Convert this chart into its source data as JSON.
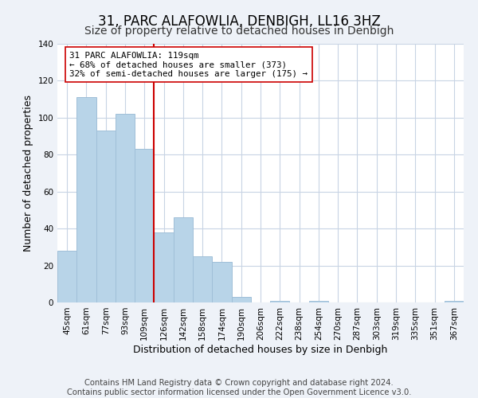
{
  "title": "31, PARC ALAFOWLIA, DENBIGH, LL16 3HZ",
  "subtitle": "Size of property relative to detached houses in Denbigh",
  "xlabel": "Distribution of detached houses by size in Denbigh",
  "ylabel": "Number of detached properties",
  "bar_color": "#b8d4e8",
  "bar_edge_color": "#a0bfd8",
  "vline_color": "#cc0000",
  "annotation_text": "31 PARC ALAFOWLIA: 119sqm\n← 68% of detached houses are smaller (373)\n32% of semi-detached houses are larger (175) →",
  "annotation_box_color": "#ffffff",
  "annotation_box_edge": "#cc0000",
  "footer_line1": "Contains HM Land Registry data © Crown copyright and database right 2024.",
  "footer_line2": "Contains public sector information licensed under the Open Government Licence v3.0.",
  "bins": [
    "45sqm",
    "61sqm",
    "77sqm",
    "93sqm",
    "109sqm",
    "126sqm",
    "142sqm",
    "158sqm",
    "174sqm",
    "190sqm",
    "206sqm",
    "222sqm",
    "238sqm",
    "254sqm",
    "270sqm",
    "287sqm",
    "303sqm",
    "319sqm",
    "335sqm",
    "351sqm",
    "367sqm"
  ],
  "values": [
    28,
    111,
    93,
    102,
    83,
    38,
    46,
    25,
    22,
    3,
    0,
    1,
    0,
    1,
    0,
    0,
    0,
    0,
    0,
    0,
    1
  ],
  "ylim": [
    0,
    140
  ],
  "yticks": [
    0,
    20,
    40,
    60,
    80,
    100,
    120,
    140
  ],
  "background_color": "#eef2f8",
  "plot_bg_color": "#ffffff",
  "grid_color": "#c8d4e4",
  "title_fontsize": 12,
  "subtitle_fontsize": 10,
  "axis_label_fontsize": 9,
  "tick_fontsize": 7.5,
  "footer_fontsize": 7.2,
  "vline_index": 4.5
}
